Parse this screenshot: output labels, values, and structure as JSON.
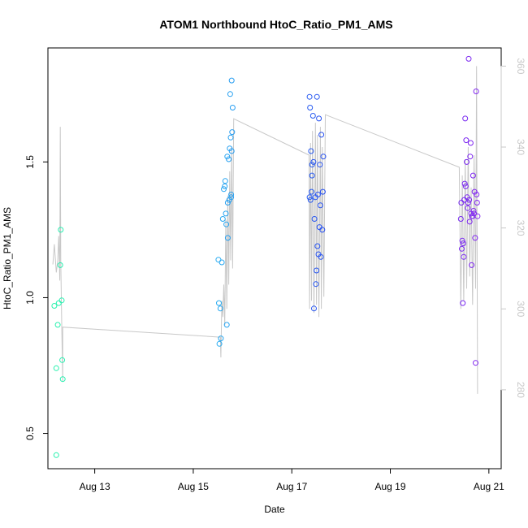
{
  "chart_data": {
    "type": "scatter",
    "title": "ATOM1 Northbound HtoC_Ratio_PM1_AMS",
    "xlabel": "Date",
    "ylabel": "HtoC_Ratio_PM1_AMS",
    "x_ticks": [
      {
        "day": 13,
        "label": "Aug 13"
      },
      {
        "day": 15,
        "label": "Aug 15"
      },
      {
        "day": 17,
        "label": "Aug 17"
      },
      {
        "day": 19,
        "label": "Aug 19"
      },
      {
        "day": 21,
        "label": "Aug 21"
      }
    ],
    "y_ticks": [
      0.5,
      1.0,
      1.5
    ],
    "y_tick_labels": [
      "0.5",
      "1.0",
      "1.5"
    ],
    "y2_ticks": [
      280,
      300,
      320,
      340,
      360
    ],
    "y2_tick_labels": [
      "280",
      "300",
      "320",
      "340",
      "360"
    ],
    "xlim": [
      12.05,
      21.25
    ],
    "ylim": [
      0.37,
      1.92
    ],
    "y2lim": [
      260.5,
      364.5
    ],
    "grid": false,
    "series": [
      {
        "kind": "points",
        "points": [
          [
            12.18,
            0.97
          ],
          [
            12.22,
            0.42
          ],
          [
            12.22,
            0.74
          ],
          [
            12.25,
            0.9
          ],
          [
            12.27,
            0.98
          ],
          [
            12.3,
            1.12
          ],
          [
            12.31,
            1.25
          ],
          [
            12.33,
            0.99
          ],
          [
            12.34,
            0.77
          ],
          [
            12.35,
            0.7
          ],
          [
            15.51,
            1.14
          ],
          [
            15.52,
            0.98
          ],
          [
            15.53,
            0.83
          ],
          [
            15.55,
            0.96
          ],
          [
            15.56,
            0.85
          ],
          [
            15.58,
            1.13
          ],
          [
            15.6,
            1.29
          ],
          [
            15.62,
            1.4
          ],
          [
            15.64,
            1.41
          ],
          [
            15.65,
            1.43
          ],
          [
            15.66,
            1.31
          ],
          [
            15.67,
            1.27
          ],
          [
            15.68,
            0.9
          ],
          [
            15.69,
            1.52
          ],
          [
            15.7,
            1.22
          ],
          [
            15.7,
            1.35
          ],
          [
            15.72,
            1.51
          ],
          [
            15.73,
            1.36
          ],
          [
            15.74,
            1.55
          ],
          [
            15.75,
            1.75
          ],
          [
            15.76,
            1.59
          ],
          [
            15.77,
            1.37
          ],
          [
            15.77,
            1.38
          ],
          [
            15.78,
            1.8
          ],
          [
            15.78,
            1.54
          ],
          [
            15.79,
            1.61
          ],
          [
            15.8,
            1.7
          ],
          [
            17.36,
            1.74
          ],
          [
            17.36,
            1.37
          ],
          [
            17.37,
            1.7
          ],
          [
            17.38,
            1.36
          ],
          [
            17.39,
            1.54
          ],
          [
            17.4,
            1.39
          ],
          [
            17.41,
            1.45
          ],
          [
            17.41,
            1.49
          ],
          [
            17.43,
            1.67
          ],
          [
            17.44,
            1.5
          ],
          [
            17.45,
            0.96
          ],
          [
            17.46,
            1.29
          ],
          [
            17.48,
            1.37
          ],
          [
            17.49,
            1.05
          ],
          [
            17.5,
            1.1
          ],
          [
            17.51,
            1.74
          ],
          [
            17.52,
            1.19
          ],
          [
            17.53,
            1.38
          ],
          [
            17.54,
            1.16
          ],
          [
            17.55,
            1.66
          ],
          [
            17.56,
            1.26
          ],
          [
            17.57,
            1.49
          ],
          [
            17.58,
            1.34
          ],
          [
            17.59,
            1.15
          ],
          [
            17.6,
            1.6
          ],
          [
            17.62,
            1.25
          ],
          [
            17.63,
            1.39
          ],
          [
            17.64,
            1.52
          ],
          [
            20.43,
            1.29
          ],
          [
            20.44,
            1.35
          ],
          [
            20.45,
            1.18
          ],
          [
            20.46,
            1.21
          ],
          [
            20.47,
            0.98
          ],
          [
            20.48,
            1.2
          ],
          [
            20.49,
            1.15
          ],
          [
            20.5,
            1.36
          ],
          [
            20.51,
            1.42
          ],
          [
            20.52,
            1.66
          ],
          [
            20.53,
            1.41
          ],
          [
            20.54,
            1.58
          ],
          [
            20.55,
            1.5
          ],
          [
            20.56,
            1.37
          ],
          [
            20.57,
            1.33
          ],
          [
            20.58,
            1.35
          ],
          [
            20.59,
            1.88
          ],
          [
            20.6,
            1.36
          ],
          [
            20.61,
            1.28
          ],
          [
            20.62,
            1.52
          ],
          [
            20.63,
            1.57
          ],
          [
            20.64,
            1.31
          ],
          [
            20.65,
            1.12
          ],
          [
            20.66,
            1.3
          ],
          [
            20.67,
            1.3
          ],
          [
            20.68,
            1.45
          ],
          [
            20.69,
            1.32
          ],
          [
            20.7,
            1.31
          ],
          [
            20.71,
            1.39
          ],
          [
            20.72,
            1.22
          ],
          [
            20.73,
            0.76
          ],
          [
            20.74,
            1.76
          ],
          [
            20.75,
            1.38
          ],
          [
            20.76,
            1.35
          ],
          [
            20.77,
            1.3
          ]
        ]
      },
      {
        "kind": "line",
        "axis": "right",
        "color": "#c8c8c8",
        "points": [
          [
            12.15,
            311
          ],
          [
            12.18,
            316
          ],
          [
            12.22,
            309
          ],
          [
            12.25,
            312
          ],
          [
            12.27,
            318
          ],
          [
            12.29,
            307
          ],
          [
            12.3,
            345
          ],
          [
            12.31,
            312
          ],
          [
            12.33,
            296
          ],
          [
            12.35,
            282
          ],
          [
            12.35,
            295.5
          ],
          [
            15.55,
            293
          ],
          [
            15.56,
            288
          ],
          [
            15.58,
            302
          ],
          [
            15.6,
            298
          ],
          [
            15.62,
            306
          ],
          [
            15.64,
            296
          ],
          [
            15.66,
            322
          ],
          [
            15.68,
            300
          ],
          [
            15.7,
            328
          ],
          [
            15.72,
            306
          ],
          [
            15.74,
            334
          ],
          [
            15.76,
            312
          ],
          [
            15.78,
            340
          ],
          [
            15.8,
            310
          ],
          [
            15.82,
            347
          ],
          [
            17.35,
            338
          ],
          [
            17.36,
            300
          ],
          [
            17.38,
            341
          ],
          [
            17.4,
            302
          ],
          [
            17.42,
            344
          ],
          [
            17.45,
            299
          ],
          [
            17.48,
            346
          ],
          [
            17.5,
            301
          ],
          [
            17.52,
            343
          ],
          [
            17.55,
            298
          ],
          [
            17.58,
            345
          ],
          [
            17.6,
            300
          ],
          [
            17.62,
            340
          ],
          [
            17.65,
            303
          ],
          [
            17.68,
            348
          ],
          [
            20.4,
            335
          ],
          [
            20.43,
            300
          ],
          [
            20.46,
            333
          ],
          [
            20.49,
            302
          ],
          [
            20.52,
            337
          ],
          [
            20.55,
            305
          ],
          [
            20.58,
            340
          ],
          [
            20.61,
            308
          ],
          [
            20.64,
            330
          ],
          [
            20.67,
            301
          ],
          [
            20.7,
            338
          ],
          [
            20.73,
            305
          ],
          [
            20.75,
            360
          ],
          [
            20.77,
            279
          ]
        ]
      }
    ]
  }
}
